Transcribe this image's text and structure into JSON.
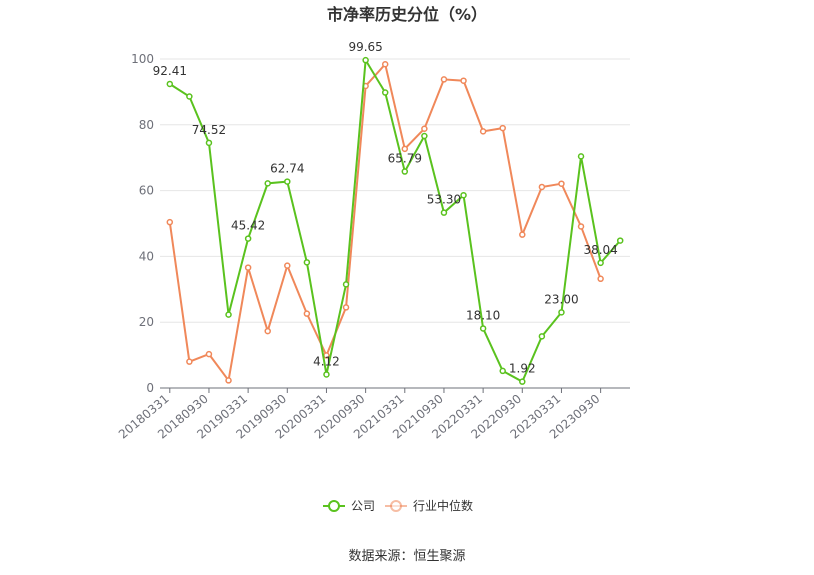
{
  "chart_data": {
    "type": "line",
    "title": "市净率历史分位（%）",
    "ylim": [
      0,
      100
    ],
    "yticks": [
      0,
      20,
      40,
      60,
      80,
      100
    ],
    "x": [
      "20180331",
      "20180630",
      "20180930",
      "20181231",
      "20190331",
      "20190630",
      "20190930",
      "20191231",
      "20200331",
      "20200630",
      "20200930",
      "20201231",
      "20210331",
      "20210630",
      "20210930",
      "20211231",
      "20220331",
      "20220630",
      "20220930",
      "20221231",
      "20230331",
      "20230630",
      "20230930",
      "20231231"
    ],
    "xtick_labels": [
      "20180331",
      "20180930",
      "20190331",
      "20190930",
      "20200331",
      "20200930",
      "20210331",
      "20210930",
      "20220331",
      "20220930",
      "20230331",
      "20230930"
    ],
    "series": [
      {
        "name": "公司",
        "color": "#5ac21e",
        "values": [
          92.41,
          88.6,
          74.52,
          22.3,
          45.42,
          62.2,
          62.74,
          38.2,
          4.12,
          31.5,
          99.65,
          89.8,
          65.79,
          76.6,
          53.3,
          58.6,
          18.1,
          5.2,
          1.92,
          15.7,
          23.0,
          70.4,
          38.04,
          44.8
        ]
      },
      {
        "name": "行业中位数",
        "color": "#f0885a",
        "values": [
          50.4,
          8.0,
          10.3,
          2.3,
          36.6,
          17.3,
          37.2,
          22.6,
          9.9,
          24.5,
          91.8,
          98.4,
          72.7,
          78.8,
          93.8,
          93.4,
          78.0,
          79.0,
          46.6,
          61.1,
          62.1,
          49.1,
          33.2,
          null
        ]
      }
    ],
    "data_labels": [
      {
        "index": 0,
        "text": "92.41"
      },
      {
        "index": 2,
        "text": "74.52"
      },
      {
        "index": 4,
        "text": "45.42"
      },
      {
        "index": 6,
        "text": "62.74"
      },
      {
        "index": 8,
        "text": "4.12"
      },
      {
        "index": 10,
        "text": "99.65"
      },
      {
        "index": 12,
        "text": "65.79"
      },
      {
        "index": 14,
        "text": "53.30"
      },
      {
        "index": 16,
        "text": "18.10"
      },
      {
        "index": 18,
        "text": "1.92"
      },
      {
        "index": 20,
        "text": "23.00"
      },
      {
        "index": 22,
        "text": "38.04"
      }
    ],
    "legend_position": "bottom",
    "grid": true
  },
  "source": "数据来源：恒生聚源"
}
